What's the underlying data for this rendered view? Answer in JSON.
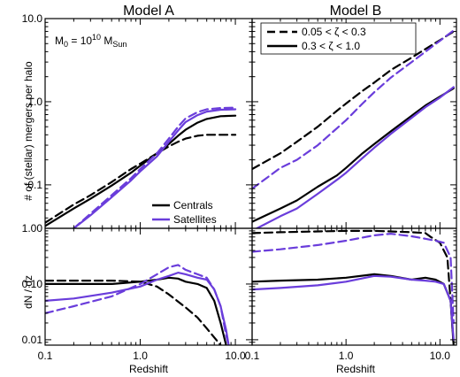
{
  "figure": {
    "titles": [
      "Model A",
      "Model B"
    ],
    "ylabel_top": "# of (stellar) mergers per halo",
    "ylabel_bottom": "dN / dz",
    "xlabel": "Redshift",
    "annotation_parts": {
      "m0": "M",
      "m0_sub": "0",
      "eq": " = 10",
      "exp": "10",
      "msun": " M",
      "msun_sub": "Sun"
    },
    "legend_ratio": [
      {
        "label": "0.05 < ζ < 0.3",
        "style": "dashed"
      },
      {
        "label": "0.3 < ζ < 1.0",
        "style": "solid"
      }
    ],
    "legend_type": [
      {
        "label": "Centrals",
        "color": "#000000"
      },
      {
        "label": "Satellites",
        "color": "#6a3ddb"
      }
    ],
    "colors": {
      "centrals": "#000000",
      "satellites": "#6a3ddb"
    }
  },
  "chart_data": [
    {
      "type": "line",
      "panel": "Model A - cumulative",
      "title": "Model A",
      "xscale": "log",
      "yscale": "log",
      "xlim": [
        0.1,
        15
      ],
      "ylim": [
        0.03,
        10.0
      ],
      "xticks": [
        "0.1",
        "1.0",
        "10.0"
      ],
      "yticks": [
        "0.1",
        "1.0",
        "10.0"
      ],
      "ylabel": "# of (stellar) mergers per halo",
      "series": [
        {
          "group": "Centrals",
          "ratio": "0.05 < ζ < 0.3",
          "x": [
            0.1,
            0.2,
            0.3,
            0.5,
            0.8,
            1.0,
            1.5,
            2.0,
            2.5,
            3.0,
            4.0,
            5.0,
            7.0,
            10.0
          ],
          "y": [
            0.035,
            0.058,
            0.075,
            0.108,
            0.155,
            0.18,
            0.24,
            0.29,
            0.33,
            0.36,
            0.39,
            0.4,
            0.4,
            0.4
          ]
        },
        {
          "group": "Centrals",
          "ratio": "0.3 < ζ < 1.0",
          "x": [
            0.1,
            0.2,
            0.3,
            0.5,
            0.8,
            1.0,
            1.5,
            2.0,
            2.5,
            3.0,
            4.0,
            5.0,
            7.0,
            10.0
          ],
          "y": [
            0.032,
            0.052,
            0.068,
            0.098,
            0.14,
            0.17,
            0.24,
            0.31,
            0.39,
            0.46,
            0.56,
            0.62,
            0.67,
            0.68
          ]
        },
        {
          "group": "Satellites",
          "ratio": "0.05 < ζ < 0.3",
          "x": [
            0.2,
            0.3,
            0.5,
            0.8,
            1.0,
            1.5,
            2.0,
            2.5,
            3.0,
            4.0,
            5.0,
            7.0,
            10.0
          ],
          "y": [
            0.03,
            0.045,
            0.075,
            0.12,
            0.155,
            0.24,
            0.36,
            0.5,
            0.63,
            0.75,
            0.81,
            0.84,
            0.85
          ]
        },
        {
          "group": "Satellites",
          "ratio": "0.3 < ζ < 1.0",
          "x": [
            0.2,
            0.3,
            0.5,
            0.8,
            1.0,
            1.5,
            2.0,
            2.5,
            3.0,
            4.0,
            5.0,
            7.0,
            10.0
          ],
          "y": [
            0.03,
            0.043,
            0.071,
            0.113,
            0.145,
            0.22,
            0.33,
            0.45,
            0.57,
            0.69,
            0.76,
            0.8,
            0.81
          ]
        }
      ]
    },
    {
      "type": "line",
      "panel": "Model B - cumulative",
      "title": "Model B",
      "xscale": "log",
      "yscale": "log",
      "xlim": [
        0.1,
        15
      ],
      "ylim": [
        0.03,
        10.0
      ],
      "xticks": [
        "0.1",
        "1.0",
        "10.0"
      ],
      "yticks": [
        "0.1",
        "1.0",
        "10.0"
      ],
      "series": [
        {
          "group": "Centrals",
          "ratio": "0.05 < ζ < 0.3",
          "x": [
            0.1,
            0.2,
            0.3,
            0.5,
            0.8,
            1.0,
            1.5,
            2.0,
            3.0,
            5.0,
            7.0,
            10.0,
            14.0
          ],
          "y": [
            0.155,
            0.24,
            0.33,
            0.5,
            0.78,
            0.95,
            1.35,
            1.7,
            2.4,
            3.4,
            4.3,
            5.5,
            7.0
          ]
        },
        {
          "group": "Centrals",
          "ratio": "0.3 < ζ < 1.0",
          "x": [
            0.1,
            0.2,
            0.3,
            0.5,
            0.8,
            1.0,
            1.5,
            2.0,
            3.0,
            5.0,
            7.0,
            10.0,
            14.0
          ],
          "y": [
            0.036,
            0.052,
            0.065,
            0.095,
            0.13,
            0.16,
            0.24,
            0.31,
            0.44,
            0.68,
            0.9,
            1.15,
            1.45
          ]
        },
        {
          "group": "Satellites",
          "ratio": "0.05 < ζ < 0.3",
          "x": [
            0.1,
            0.2,
            0.3,
            0.5,
            0.8,
            1.0,
            1.5,
            2.0,
            3.0,
            5.0,
            7.0,
            10.0,
            14.0
          ],
          "y": [
            0.09,
            0.16,
            0.2,
            0.3,
            0.48,
            0.6,
            0.95,
            1.3,
            1.95,
            3.0,
            4.0,
            5.4,
            7.2
          ]
        },
        {
          "group": "Satellites",
          "ratio": "0.3 < ζ < 1.0",
          "x": [
            0.1,
            0.2,
            0.3,
            0.5,
            0.8,
            1.0,
            1.5,
            2.0,
            3.0,
            5.0,
            7.0,
            10.0,
            14.0
          ],
          "y": [
            0.028,
            0.042,
            0.052,
            0.078,
            0.115,
            0.14,
            0.21,
            0.28,
            0.41,
            0.64,
            0.86,
            1.12,
            1.5
          ]
        }
      ]
    },
    {
      "type": "line",
      "panel": "Model A - differential",
      "xscale": "log",
      "yscale": "log",
      "xlim": [
        0.1,
        15
      ],
      "ylim": [
        0.008,
        1.0
      ],
      "xticks": [
        "0.1",
        "1.0",
        "10.0"
      ],
      "yticks": [
        "0.01",
        "0.10",
        "1.00"
      ],
      "ylabel": "dN / dz",
      "xlabel": "Redshift",
      "series": [
        {
          "group": "Centrals",
          "ratio": "0.05 < ζ < 0.3",
          "x": [
            0.1,
            0.2,
            0.5,
            1.0,
            1.5,
            2.0,
            3.0,
            4.0,
            5.0,
            6.0,
            7.0
          ],
          "y": [
            0.115,
            0.115,
            0.115,
            0.11,
            0.09,
            0.065,
            0.038,
            0.025,
            0.016,
            0.011,
            0.008
          ]
        },
        {
          "group": "Centrals",
          "ratio": "0.3 < ζ < 1.0",
          "x": [
            0.1,
            0.2,
            0.5,
            1.0,
            1.5,
            2.0,
            2.5,
            3.0,
            4.0,
            5.0,
            6.0,
            7.0,
            8.0
          ],
          "y": [
            0.1,
            0.1,
            0.1,
            0.11,
            0.12,
            0.13,
            0.125,
            0.11,
            0.1,
            0.085,
            0.05,
            0.02,
            0.008
          ]
        },
        {
          "group": "Satellites",
          "ratio": "0.05 < ζ < 0.3",
          "x": [
            0.1,
            0.2,
            0.5,
            1.0,
            1.5,
            2.0,
            2.5,
            3.0,
            4.0,
            5.0,
            6.0,
            7.0,
            8.0,
            8.5
          ],
          "y": [
            0.03,
            0.04,
            0.06,
            0.1,
            0.15,
            0.2,
            0.22,
            0.18,
            0.15,
            0.13,
            0.08,
            0.04,
            0.012,
            0.008
          ]
        },
        {
          "group": "Satellites",
          "ratio": "0.3 < ζ < 1.0",
          "x": [
            0.1,
            0.2,
            0.5,
            1.0,
            1.5,
            2.0,
            2.5,
            3.0,
            4.0,
            5.0,
            6.0,
            7.0,
            8.0,
            8.5
          ],
          "y": [
            0.05,
            0.055,
            0.07,
            0.09,
            0.12,
            0.14,
            0.16,
            0.15,
            0.13,
            0.12,
            0.08,
            0.04,
            0.015,
            0.008
          ]
        }
      ]
    },
    {
      "type": "line",
      "panel": "Model B - differential",
      "xscale": "log",
      "yscale": "log",
      "xlim": [
        0.1,
        15
      ],
      "ylim": [
        0.008,
        1.0
      ],
      "xticks": [
        "0.1",
        "1.0",
        "10.0"
      ],
      "xlabel": "Redshift",
      "series": [
        {
          "group": "Centrals",
          "ratio": "0.05 < ζ < 0.3",
          "x": [
            0.1,
            0.2,
            0.5,
            1.0,
            2.0,
            3.0,
            5.0,
            7.0,
            8.0,
            10.0,
            12.0,
            13.0,
            14.0
          ],
          "y": [
            0.82,
            0.85,
            0.88,
            0.9,
            0.9,
            0.88,
            0.85,
            0.82,
            0.7,
            0.55,
            0.3,
            0.05,
            0.008
          ]
        },
        {
          "group": "Centrals",
          "ratio": "0.3 < ζ < 1.0",
          "x": [
            0.1,
            0.2,
            0.5,
            1.0,
            2.0,
            3.0,
            5.0,
            7.0,
            9.0,
            11.0,
            13.0,
            14.0
          ],
          "y": [
            0.11,
            0.115,
            0.12,
            0.13,
            0.15,
            0.14,
            0.12,
            0.13,
            0.12,
            0.1,
            0.05,
            0.008
          ]
        },
        {
          "group": "Satellites",
          "ratio": "0.05 < ζ < 0.3",
          "x": [
            0.1,
            0.2,
            0.5,
            1.0,
            2.0,
            3.0,
            5.0,
            7.0,
            9.0,
            11.0,
            13.0,
            14.0
          ],
          "y": [
            0.38,
            0.42,
            0.5,
            0.6,
            0.75,
            0.8,
            0.72,
            0.65,
            0.6,
            0.55,
            0.3,
            0.02
          ]
        },
        {
          "group": "Satellites",
          "ratio": "0.3 < ζ < 1.0",
          "x": [
            0.1,
            0.2,
            0.5,
            1.0,
            2.0,
            3.0,
            5.0,
            7.0,
            9.0,
            11.0,
            13.0,
            14.0
          ],
          "y": [
            0.08,
            0.085,
            0.095,
            0.11,
            0.14,
            0.135,
            0.12,
            0.115,
            0.11,
            0.1,
            0.05,
            0.01
          ]
        }
      ]
    }
  ]
}
